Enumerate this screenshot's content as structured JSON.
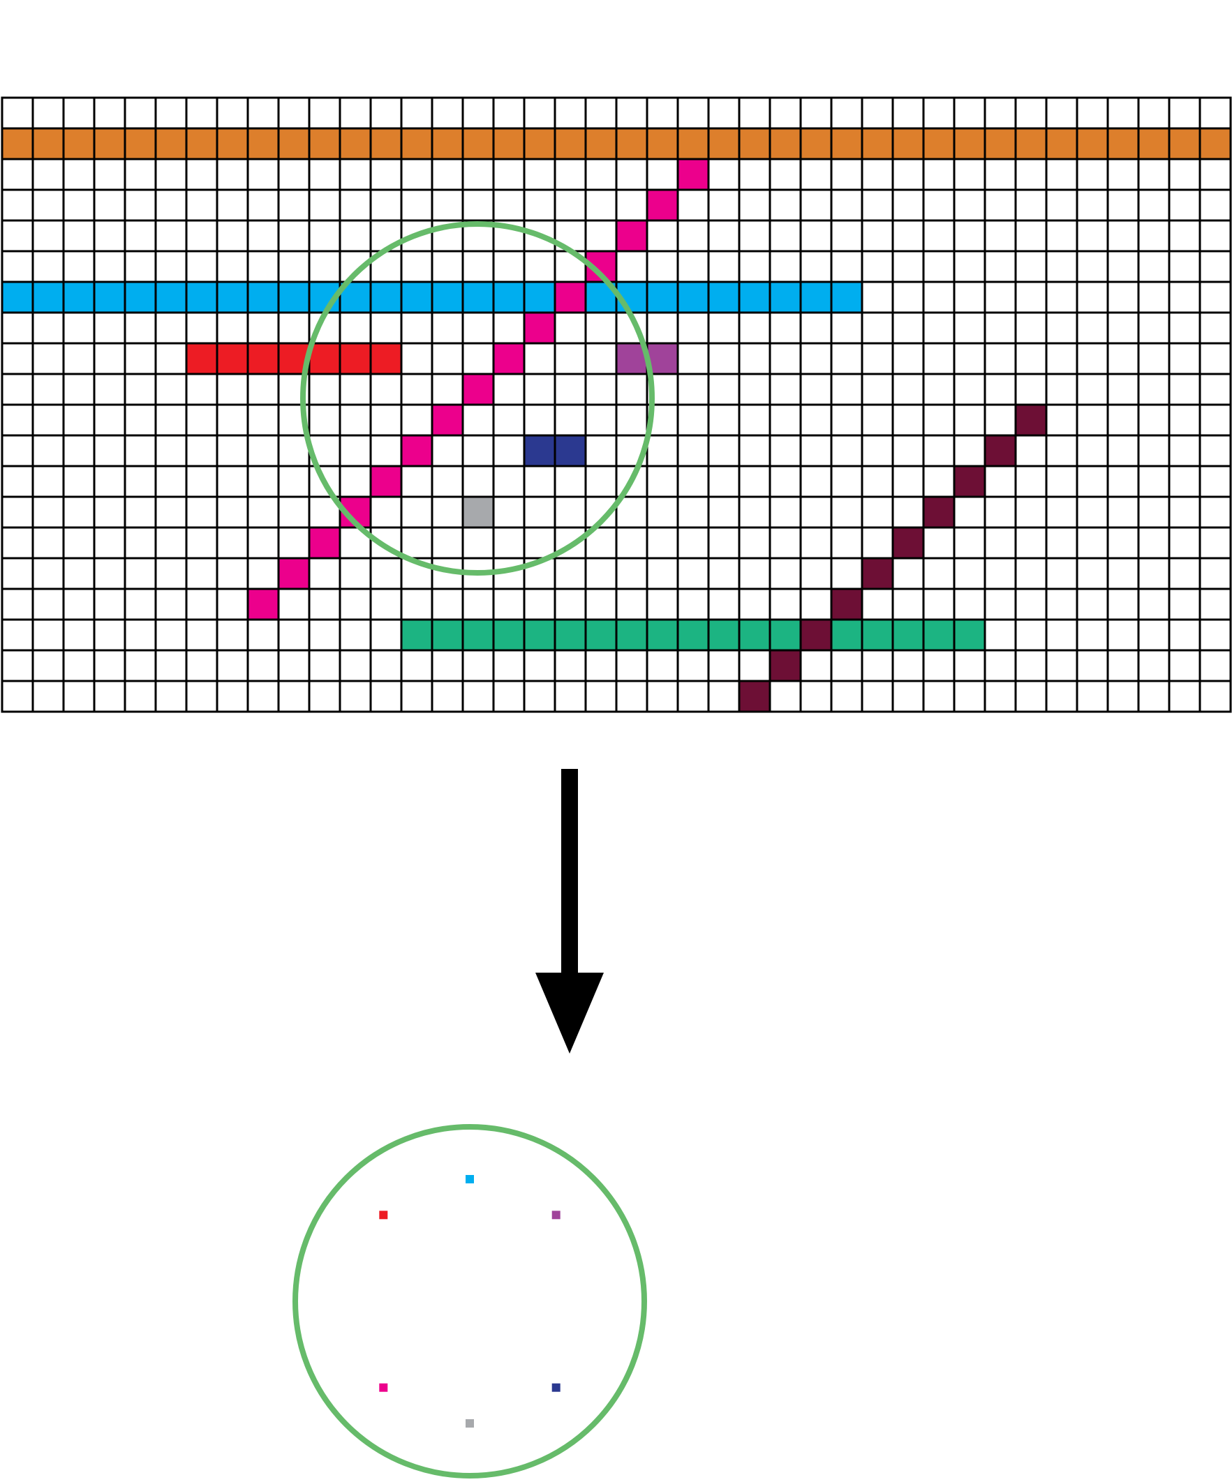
{
  "colors": {
    "background": "#ffffff",
    "grid_line": "#000000",
    "circle": "#66bb6a",
    "arrow": "#000000"
  },
  "grid": {
    "rows": 20,
    "cols": 40,
    "segments": [
      {
        "name": "orange-bar",
        "color": "#dd7f2c",
        "cells": [
          [
            1,
            0
          ],
          [
            1,
            1
          ],
          [
            1,
            2
          ],
          [
            1,
            3
          ],
          [
            1,
            4
          ],
          [
            1,
            5
          ],
          [
            1,
            6
          ],
          [
            1,
            7
          ],
          [
            1,
            8
          ],
          [
            1,
            9
          ],
          [
            1,
            10
          ],
          [
            1,
            11
          ],
          [
            1,
            12
          ],
          [
            1,
            13
          ],
          [
            1,
            14
          ],
          [
            1,
            15
          ],
          [
            1,
            16
          ],
          [
            1,
            17
          ],
          [
            1,
            18
          ],
          [
            1,
            19
          ],
          [
            1,
            20
          ],
          [
            1,
            21
          ],
          [
            1,
            22
          ],
          [
            1,
            23
          ],
          [
            1,
            24
          ],
          [
            1,
            25
          ],
          [
            1,
            26
          ],
          [
            1,
            27
          ],
          [
            1,
            28
          ],
          [
            1,
            29
          ],
          [
            1,
            30
          ],
          [
            1,
            31
          ],
          [
            1,
            32
          ],
          [
            1,
            33
          ],
          [
            1,
            34
          ],
          [
            1,
            35
          ],
          [
            1,
            36
          ],
          [
            1,
            37
          ],
          [
            1,
            38
          ],
          [
            1,
            39
          ]
        ]
      },
      {
        "name": "blue-bar",
        "color": "#00aeef",
        "cells": [
          [
            6,
            0
          ],
          [
            6,
            1
          ],
          [
            6,
            2
          ],
          [
            6,
            3
          ],
          [
            6,
            4
          ],
          [
            6,
            5
          ],
          [
            6,
            6
          ],
          [
            6,
            7
          ],
          [
            6,
            8
          ],
          [
            6,
            9
          ],
          [
            6,
            10
          ],
          [
            6,
            11
          ],
          [
            6,
            12
          ],
          [
            6,
            13
          ],
          [
            6,
            14
          ],
          [
            6,
            15
          ],
          [
            6,
            16
          ],
          [
            6,
            17
          ],
          [
            6,
            18
          ],
          [
            6,
            19
          ],
          [
            6,
            20
          ],
          [
            6,
            21
          ],
          [
            6,
            22
          ],
          [
            6,
            23
          ],
          [
            6,
            24
          ],
          [
            6,
            25
          ],
          [
            6,
            26
          ],
          [
            6,
            27
          ]
        ]
      },
      {
        "name": "red-bar",
        "color": "#ed1c24",
        "cells": [
          [
            8,
            6
          ],
          [
            8,
            7
          ],
          [
            8,
            8
          ],
          [
            8,
            9
          ],
          [
            8,
            10
          ],
          [
            8,
            11
          ],
          [
            8,
            12
          ]
        ]
      },
      {
        "name": "purple-bar",
        "color": "#a0439a",
        "cells": [
          [
            8,
            20
          ],
          [
            8,
            21
          ]
        ]
      },
      {
        "name": "navy-bar",
        "color": "#2b3990",
        "cells": [
          [
            11,
            17
          ],
          [
            11,
            18
          ]
        ]
      },
      {
        "name": "gray-cell",
        "color": "#a7a9ac",
        "cells": [
          [
            13,
            15
          ]
        ]
      },
      {
        "name": "green-bar",
        "color": "#1cb482",
        "cells": [
          [
            17,
            13
          ],
          [
            17,
            14
          ],
          [
            17,
            15
          ],
          [
            17,
            16
          ],
          [
            17,
            17
          ],
          [
            17,
            18
          ],
          [
            17,
            19
          ],
          [
            17,
            20
          ],
          [
            17,
            21
          ],
          [
            17,
            22
          ],
          [
            17,
            23
          ],
          [
            17,
            24
          ],
          [
            17,
            25
          ],
          [
            17,
            26
          ],
          [
            17,
            27
          ],
          [
            17,
            28
          ],
          [
            17,
            29
          ],
          [
            17,
            30
          ],
          [
            17,
            31
          ]
        ]
      },
      {
        "name": "magenta-diagonal",
        "color": "#ec008c",
        "cells": [
          [
            2,
            22
          ],
          [
            3,
            21
          ],
          [
            4,
            20
          ],
          [
            5,
            19
          ],
          [
            6,
            18
          ],
          [
            7,
            17
          ],
          [
            8,
            16
          ],
          [
            9,
            15
          ],
          [
            10,
            14
          ],
          [
            11,
            13
          ],
          [
            12,
            12
          ],
          [
            13,
            11
          ],
          [
            14,
            10
          ],
          [
            15,
            9
          ],
          [
            16,
            8
          ]
        ]
      },
      {
        "name": "maroon-diagonal",
        "color": "#6d0f35",
        "cells": [
          [
            10,
            33
          ],
          [
            11,
            32
          ],
          [
            12,
            31
          ],
          [
            13,
            30
          ],
          [
            14,
            29
          ],
          [
            15,
            28
          ],
          [
            16,
            27
          ],
          [
            17,
            26
          ],
          [
            18,
            25
          ],
          [
            19,
            24
          ]
        ]
      }
    ]
  },
  "result_points": [
    {
      "name": "blue-point",
      "color": "#00aeef",
      "angle_deg": 90
    },
    {
      "name": "red-point",
      "color": "#ed1c24",
      "angle_deg": 135
    },
    {
      "name": "purple-point",
      "color": "#a0439a",
      "angle_deg": 45
    },
    {
      "name": "magenta-point",
      "color": "#ec008c",
      "angle_deg": 225
    },
    {
      "name": "navy-point",
      "color": "#2b3990",
      "angle_deg": 315
    },
    {
      "name": "gray-point",
      "color": "#a7a9ac",
      "angle_deg": 270
    }
  ]
}
